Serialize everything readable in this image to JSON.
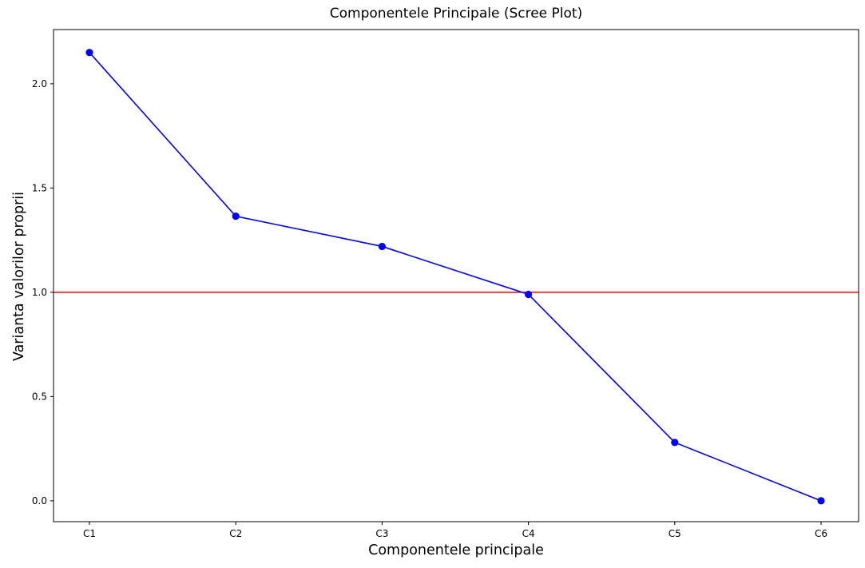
{
  "chart_data": {
    "type": "line",
    "title": "Componentele Principale (Scree Plot)",
    "xlabel": "Componentele principale",
    "ylabel": "Varianta valorilor proprii",
    "categories": [
      "C1",
      "C2",
      "C3",
      "C4",
      "C5",
      "C6"
    ],
    "series": [
      {
        "values": [
          2.15,
          1.365,
          1.22,
          0.99,
          0.28,
          0.0
        ],
        "color": "#0000ff",
        "marker": "circle"
      }
    ],
    "reference_line": {
      "y": 1.0,
      "color": "#ff0000"
    },
    "ylim": [
      -0.1,
      2.26
    ],
    "yticks": [
      0.0,
      0.5,
      1.0,
      1.5,
      2.0
    ],
    "ytick_labels": [
      "0.0",
      "0.5",
      "1.0",
      "1.5",
      "2.0"
    ],
    "grid": false,
    "legend": "none"
  }
}
